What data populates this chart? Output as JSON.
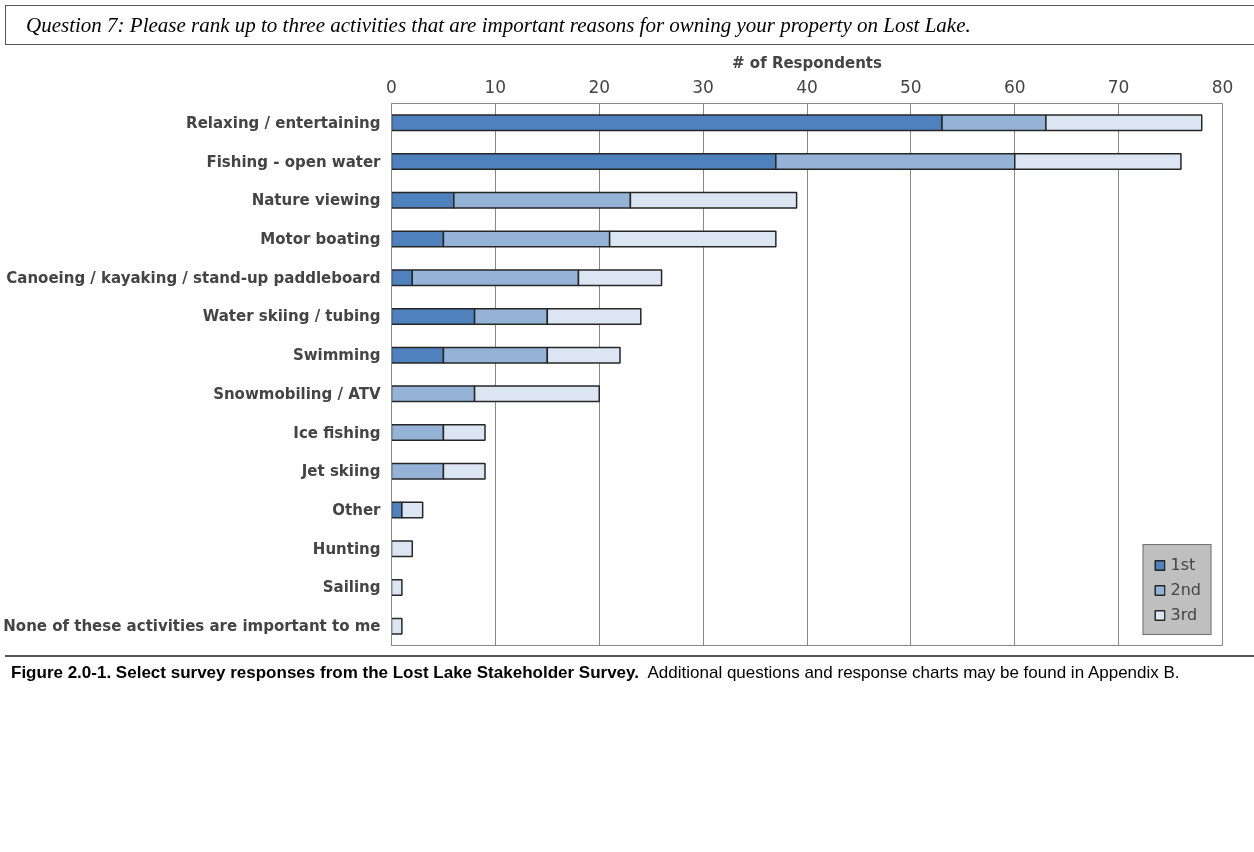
{
  "chart_data": {
    "type": "bar",
    "orientation": "horizontal",
    "stacked": true,
    "title": "Question 7:  Please rank up to three activities that are important reasons for owning your property on Lost Lake.",
    "xlabel": "# of Respondents",
    "categories": [
      "Relaxing / entertaining",
      "Fishing - open water",
      "Nature viewing",
      "Motor boating",
      "Canoeing / kayaking / stand-up paddleboard",
      "Water skiing / tubing",
      "Swimming",
      "Snowmobiling / ATV",
      "Ice fishing",
      "Jet skiing",
      "Other",
      "Hunting",
      "Sailing",
      "None of these activities are important to me"
    ],
    "series": [
      {
        "name": "1st",
        "color": "#4f81bd",
        "values": [
          53,
          37,
          6,
          5,
          2,
          8,
          5,
          0,
          0,
          0,
          1,
          0,
          0,
          0
        ]
      },
      {
        "name": "2nd",
        "color": "#95b3d7",
        "values": [
          10,
          23,
          17,
          16,
          16,
          7,
          10,
          8,
          5,
          5,
          0,
          0,
          0,
          0
        ]
      },
      {
        "name": "3rd",
        "color": "#dce6f2",
        "values": [
          15,
          16,
          16,
          16,
          8,
          9,
          7,
          12,
          4,
          4,
          2,
          2,
          1,
          1
        ]
      }
    ],
    "xlim": [
      0,
      80
    ],
    "xticks": [
      0,
      10,
      20,
      30,
      40,
      50,
      60,
      70,
      80
    ],
    "grid": "x",
    "legend": "bottom right",
    "annotations": [
      "Figure 2.0-1.  Select survey responses from the Lost Lake Stakeholder Survey.",
      "Additional questions and response charts may be found in Appendix B."
    ]
  }
}
